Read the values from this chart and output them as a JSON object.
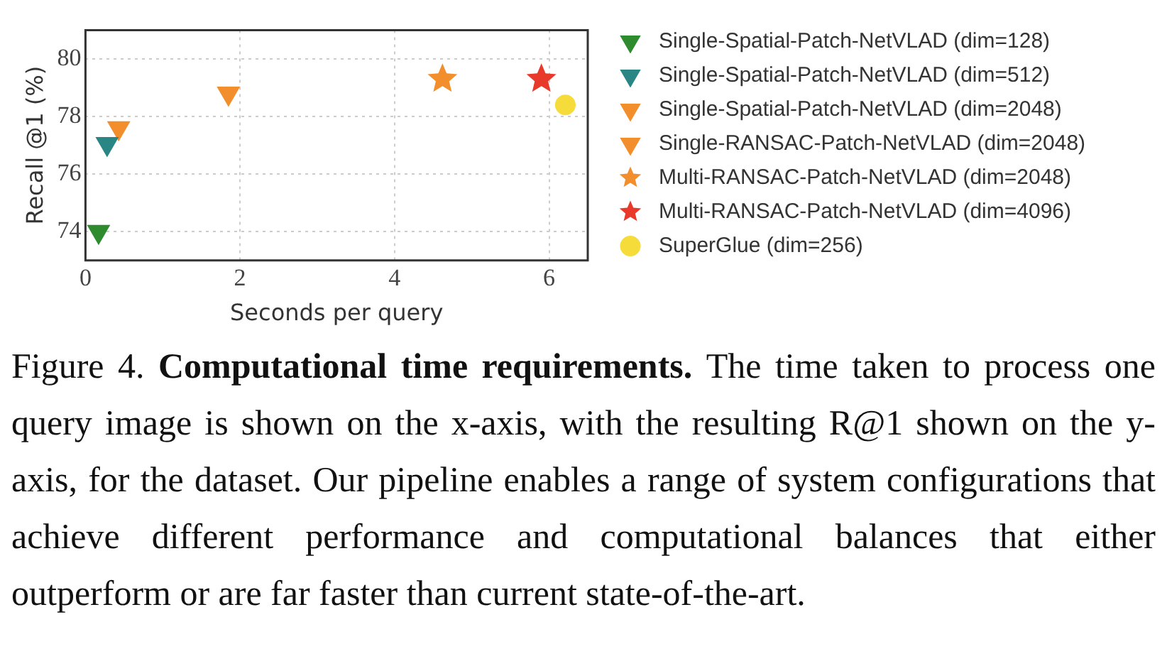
{
  "chart_data": {
    "type": "scatter",
    "xlabel": "Seconds per query",
    "ylabel": "Recall @1 (%)",
    "series": [
      {
        "name": "Single-Spatial-Patch-NetVLAD (dim=128)",
        "color": "#2e8b2e",
        "marker": "triangle",
        "x": [
          0.17
        ],
        "values": [
          74.0
        ]
      },
      {
        "name": "Single-Spatial-Patch-NetVLAD (dim=512)",
        "color": "#2a8585",
        "marker": "triangle",
        "x": [
          0.28
        ],
        "values": [
          77.05
        ]
      },
      {
        "name": "Single-Spatial-Patch-NetVLAD (dim=2048)",
        "color": "#f28e2b",
        "marker": "triangle",
        "x": [
          0.43
        ],
        "values": [
          77.6
        ]
      },
      {
        "name": "Single-RANSAC-Patch-NetVLAD (dim=2048)",
        "color": "#f28e2b",
        "marker": "triangle",
        "x": [
          1.85
        ],
        "values": [
          78.8
        ]
      },
      {
        "name": "Multi-RANSAC-Patch-NetVLAD (dim=2048)",
        "color": "#f28e2b",
        "marker": "star",
        "x": [
          4.62
        ],
        "values": [
          79.3
        ]
      },
      {
        "name": "Multi-RANSAC-Patch-NetVLAD (dim=4096)",
        "color": "#e8392a",
        "marker": "star",
        "x": [
          5.9
        ],
        "values": [
          79.3
        ]
      },
      {
        "name": "SuperGlue (dim=256)",
        "color": "#f5dc3a",
        "marker": "circle",
        "x": [
          6.21
        ],
        "values": [
          78.4
        ]
      }
    ],
    "xlim": [
      0,
      6.5
    ],
    "ylim": [
      73,
      81
    ],
    "xticks": [
      0,
      2,
      4,
      6
    ],
    "yticks": [
      74,
      76,
      78,
      80
    ],
    "grid": true,
    "legend": "right",
    "annotations": [
      "Figure 4.",
      "Computational time requirements.",
      "The time taken to process one query image is shown on the x-axis, with the resulting R@1 shown on the y-axis, for the dataset. Our pipeline enables a range of system configurations that achieve different performance and computational balances that either outperform or are far faster than current state-of-the-art."
    ]
  }
}
